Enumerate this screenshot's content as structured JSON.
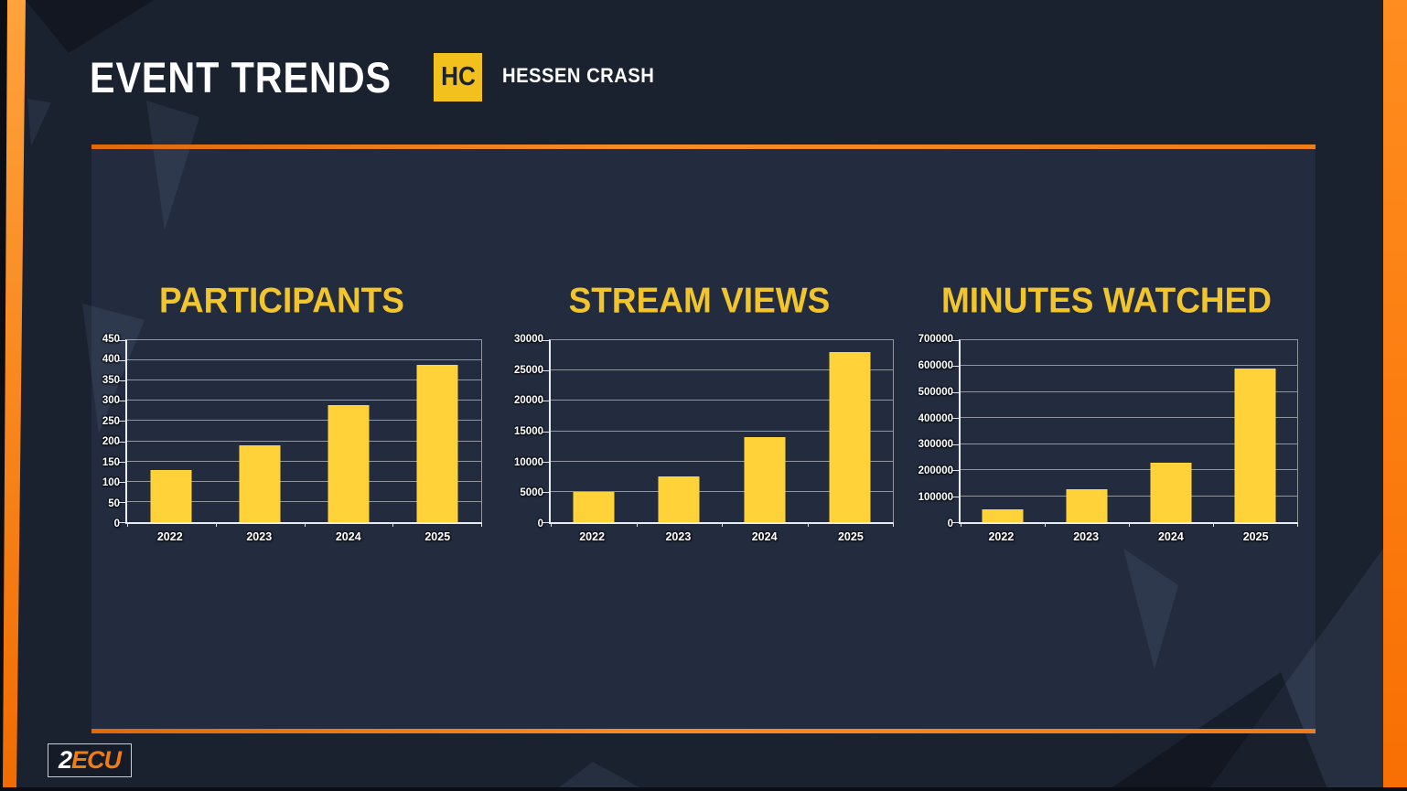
{
  "header": {
    "title": "EVENT TRENDS",
    "badge": "HC",
    "event_name": "HESSEN CRASH"
  },
  "footer": {
    "logo_prefix": "2",
    "logo_suffix": "ECU"
  },
  "colors": {
    "background": "#1a212f",
    "panel": "#232c3e",
    "accent_orange": "#ee7c18",
    "bar_yellow": "#ffd23a",
    "title_yellow": "#f2c52d",
    "badge_yellow": "#f2c11e",
    "text_white": "#ffffff"
  },
  "chart_data": [
    {
      "type": "bar",
      "title": "PARTICIPANTS",
      "categories": [
        "2022",
        "2023",
        "2024",
        "2025"
      ],
      "values": [
        130,
        190,
        290,
        390
      ],
      "ylim": [
        0,
        450
      ],
      "ytick_step": 50,
      "yticks": [
        0,
        50,
        100,
        150,
        200,
        250,
        300,
        350,
        400,
        450
      ],
      "xlabel": "",
      "ylabel": "",
      "grid": true,
      "legend": "none",
      "bar_color": "#ffd23a"
    },
    {
      "type": "bar",
      "title": "STREAM VIEWS",
      "categories": [
        "2022",
        "2023",
        "2024",
        "2025"
      ],
      "values": [
        5000,
        7500,
        14000,
        28000
      ],
      "ylim": [
        0,
        30000
      ],
      "ytick_step": 5000,
      "yticks": [
        0,
        5000,
        10000,
        15000,
        20000,
        25000,
        30000
      ],
      "xlabel": "",
      "ylabel": "",
      "grid": true,
      "legend": "none",
      "bar_color": "#ffd23a"
    },
    {
      "type": "bar",
      "title": "MINUTES WATCHED",
      "categories": [
        "2022",
        "2023",
        "2024",
        "2025"
      ],
      "values": [
        50000,
        125000,
        230000,
        590000
      ],
      "ylim": [
        0,
        700000
      ],
      "ytick_step": 100000,
      "yticks": [
        0,
        100000,
        200000,
        300000,
        400000,
        500000,
        600000,
        700000
      ],
      "xlabel": "",
      "ylabel": "",
      "grid": true,
      "legend": "none",
      "bar_color": "#ffd23a"
    }
  ]
}
